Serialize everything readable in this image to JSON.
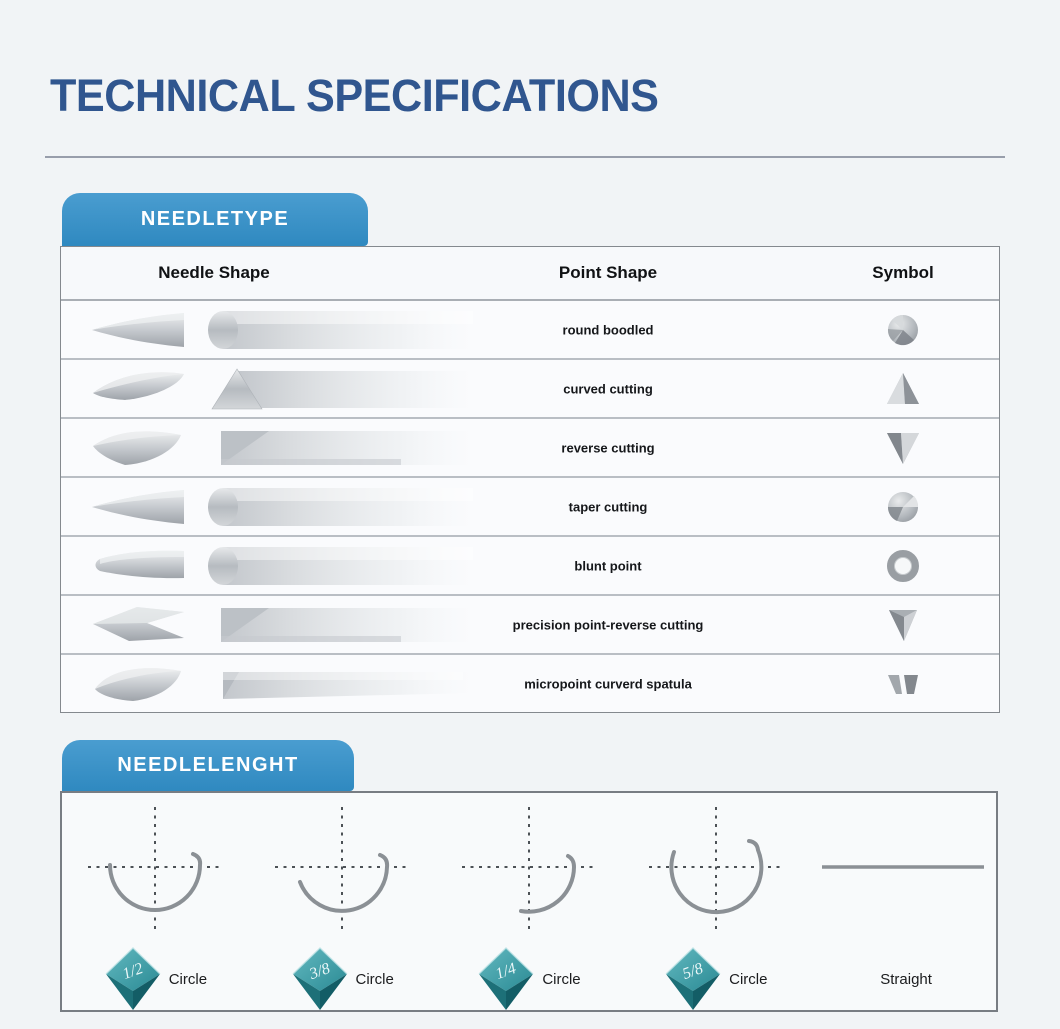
{
  "title": "TECHNICAL SPECIFICATIONS",
  "colors": {
    "accent_blue": "#3591c8",
    "title_blue": "#30568f",
    "gem_teal": "#2f8f99",
    "background": "#f1f4f6"
  },
  "needle_type": {
    "tab_label": "NEEDLETYPE",
    "columns": [
      "Needle Shape",
      "Point Shape",
      "Symbol"
    ],
    "rows": [
      {
        "point_shape": "round boodled",
        "tip": "cone",
        "body": "cylinder",
        "symbol": "sphere-segmented"
      },
      {
        "point_shape": "curved cutting",
        "tip": "curved-hook",
        "body": "prism-triangle",
        "symbol": "triangle-up"
      },
      {
        "point_shape": "reverse cutting",
        "tip": "curved-wedge",
        "body": "prism-notch",
        "symbol": "triangle-down"
      },
      {
        "point_shape": "taper cutting",
        "tip": "cone",
        "body": "cylinder",
        "symbol": "sphere-cut"
      },
      {
        "point_shape": "blunt point",
        "tip": "blunt",
        "body": "cylinder",
        "symbol": "ring"
      },
      {
        "point_shape": "precision point-reverse cutting",
        "tip": "arrow-wedge",
        "body": "prism-notch",
        "symbol": "triangle-down-sharp"
      },
      {
        "point_shape": "micropoint curverd spatula",
        "tip": "spatula",
        "body": "flat-bar",
        "symbol": "double-trapezoid"
      }
    ]
  },
  "needle_length": {
    "tab_label": "NEEDLELENGHT",
    "items": [
      {
        "fraction": "1/2",
        "label": "Circle",
        "arc": "half"
      },
      {
        "fraction": "3/8",
        "label": "Circle",
        "arc": "three-eighths"
      },
      {
        "fraction": "1/4",
        "label": "Circle",
        "arc": "quarter"
      },
      {
        "fraction": "5/8",
        "label": "Circle",
        "arc": "five-eighths"
      },
      {
        "fraction": "",
        "label": "Straight",
        "arc": "straight"
      }
    ]
  }
}
